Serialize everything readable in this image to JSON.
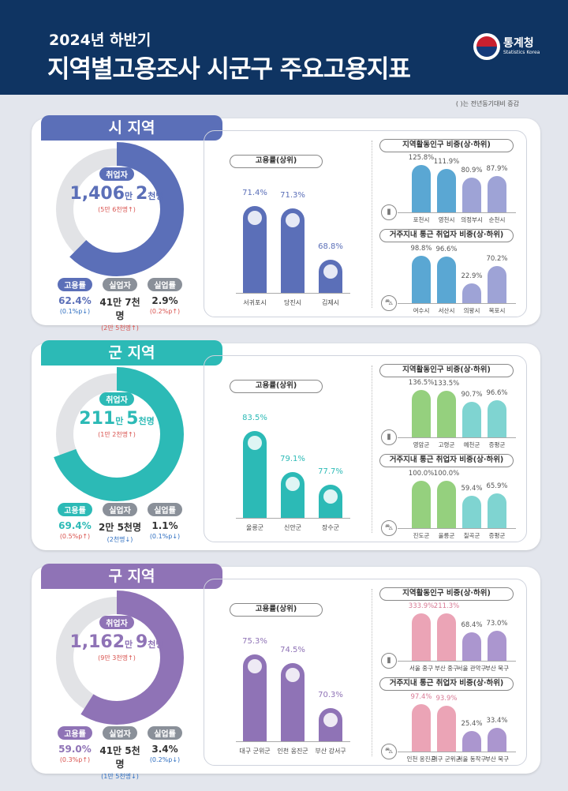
{
  "header": {
    "subtitle": "2024년 하반기",
    "title": "지역별고용조사 시군구 주요고용지표",
    "logo_name": "통계청",
    "logo_en": "Statistics Korea"
  },
  "note": "(   )는 전년동기대비 증감",
  "colors": {
    "navy": "#0f3462",
    "up": "#d9534f",
    "down": "#2f6fc1"
  },
  "regions": [
    {
      "tab": "시 지역",
      "color": "#5b6fb8",
      "track": "#e2e3e6",
      "employed": {
        "label": "취업자",
        "b1": "1,406",
        "s1": "만 ",
        "b2": "2",
        "s2": "천명",
        "change": "(5만 6천명↑)",
        "dir": "up"
      },
      "employment_rate": 62.4,
      "stats": [
        {
          "label": "고용률",
          "value": "62.4%",
          "change": "(0.1%p↓)",
          "dir": "down",
          "accent": true
        },
        {
          "label": "실업자",
          "value": "41만 7천명",
          "change": "(2만 5천명↑)",
          "dir": "up"
        },
        {
          "label": "실업률",
          "value": "2.9%",
          "change": "(0.2%p↑)",
          "dir": "up"
        }
      ],
      "pop_color_top": "#5aa7d3",
      "pop_color_bottom": "#9ea3d6"
    },
    {
      "tab": "군 지역",
      "color": "#2cbab6",
      "track": "#e2e3e6",
      "employed": {
        "label": "취업자",
        "b1": "211",
        "s1": "만 ",
        "b2": "5",
        "s2": "천명",
        "change": "(1만 2천명↑)",
        "dir": "up"
      },
      "employment_rate": 69.4,
      "stats": [
        {
          "label": "고용률",
          "value": "69.4%",
          "change": "(0.5%p↑)",
          "dir": "up",
          "accent": true
        },
        {
          "label": "실업자",
          "value": "2만 5천명",
          "change": "(2천명↓)",
          "dir": "down"
        },
        {
          "label": "실업률",
          "value": "1.1%",
          "change": "(0.1%p↓)",
          "dir": "down"
        }
      ],
      "pop_color_top": "#95d07e",
      "pop_color_bottom": "#7fd4d1"
    },
    {
      "tab": "구 지역",
      "color": "#8f73b6",
      "track": "#e2e3e6",
      "employed": {
        "label": "취업자",
        "b1": "1,162",
        "s1": "만 ",
        "b2": "9",
        "s2": "천명",
        "change": "(9만 3천명↑)",
        "dir": "up"
      },
      "employment_rate": 59.0,
      "stats": [
        {
          "label": "고용률",
          "value": "59.0%",
          "change": "(0.3%p↑)",
          "dir": "up",
          "accent": true
        },
        {
          "label": "실업자",
          "value": "41만 5천명",
          "change": "(1만 5천명↓)",
          "dir": "down"
        },
        {
          "label": "실업률",
          "value": "3.4%",
          "change": "(0.2%p↓)",
          "dir": "down"
        }
      ],
      "pop_color_top": "#eba4b6",
      "pop_color_bottom": "#ab96cf"
    }
  ],
  "chart_data": [
    {
      "type": "bar",
      "title": "고용률(상위)",
      "region": "시 지역",
      "categories": [
        "서귀포시",
        "당진시",
        "김제시"
      ],
      "values": [
        71.4,
        71.3,
        68.8
      ],
      "unit": "%"
    },
    {
      "type": "bar",
      "title": "지역활동인구 비중(상·하위)",
      "region": "시 지역",
      "categories": [
        "포천시",
        "영천시",
        "의정부시",
        "순천시"
      ],
      "values": [
        125.8,
        111.9,
        80.9,
        87.9
      ],
      "unit": "%"
    },
    {
      "type": "bar",
      "title": "거주지내 통근 취업자 비중(상·하위)",
      "region": "시 지역",
      "categories": [
        "여수시",
        "서산시",
        "의왕시",
        "목포시"
      ],
      "values": [
        98.8,
        96.6,
        22.9,
        70.2
      ],
      "unit": "%"
    },
    {
      "type": "bar",
      "title": "고용률(상위)",
      "region": "군 지역",
      "categories": [
        "울릉군",
        "신안군",
        "장수군"
      ],
      "values": [
        83.5,
        79.1,
        77.7
      ],
      "unit": "%"
    },
    {
      "type": "bar",
      "title": "지역활동인구 비중(상·하위)",
      "region": "군 지역",
      "categories": [
        "영암군",
        "고령군",
        "예천군",
        "증평군"
      ],
      "values": [
        136.5,
        133.5,
        90.7,
        96.6
      ],
      "unit": "%"
    },
    {
      "type": "bar",
      "title": "거주지내 통근 취업자 비중(상·하위)",
      "region": "군 지역",
      "categories": [
        "진도군",
        "울릉군",
        "칠곡군",
        "증평군"
      ],
      "values": [
        100.0,
        100.0,
        59.4,
        65.9
      ],
      "unit": "%"
    },
    {
      "type": "bar",
      "title": "고용률(상위)",
      "region": "구 지역",
      "categories": [
        "대구 군위군",
        "인천 옹진군",
        "부산 강서구"
      ],
      "values": [
        75.3,
        74.5,
        70.3
      ],
      "unit": "%"
    },
    {
      "type": "bar",
      "title": "지역활동인구 비중(상·하위)",
      "region": "구 지역",
      "categories": [
        "서울 중구",
        "부산 중구",
        "서울 관악구",
        "부산 북구"
      ],
      "values": [
        333.9,
        211.3,
        68.4,
        73.0
      ],
      "unit": "%"
    },
    {
      "type": "bar",
      "title": "거주지내 통근 취업자 비중(상·하위)",
      "region": "구 지역",
      "categories": [
        "인천 옹진군",
        "대구 군위군",
        "서울 동작구",
        "부산 북구"
      ],
      "values": [
        97.4,
        93.9,
        25.4,
        33.4
      ],
      "unit": "%"
    }
  ]
}
